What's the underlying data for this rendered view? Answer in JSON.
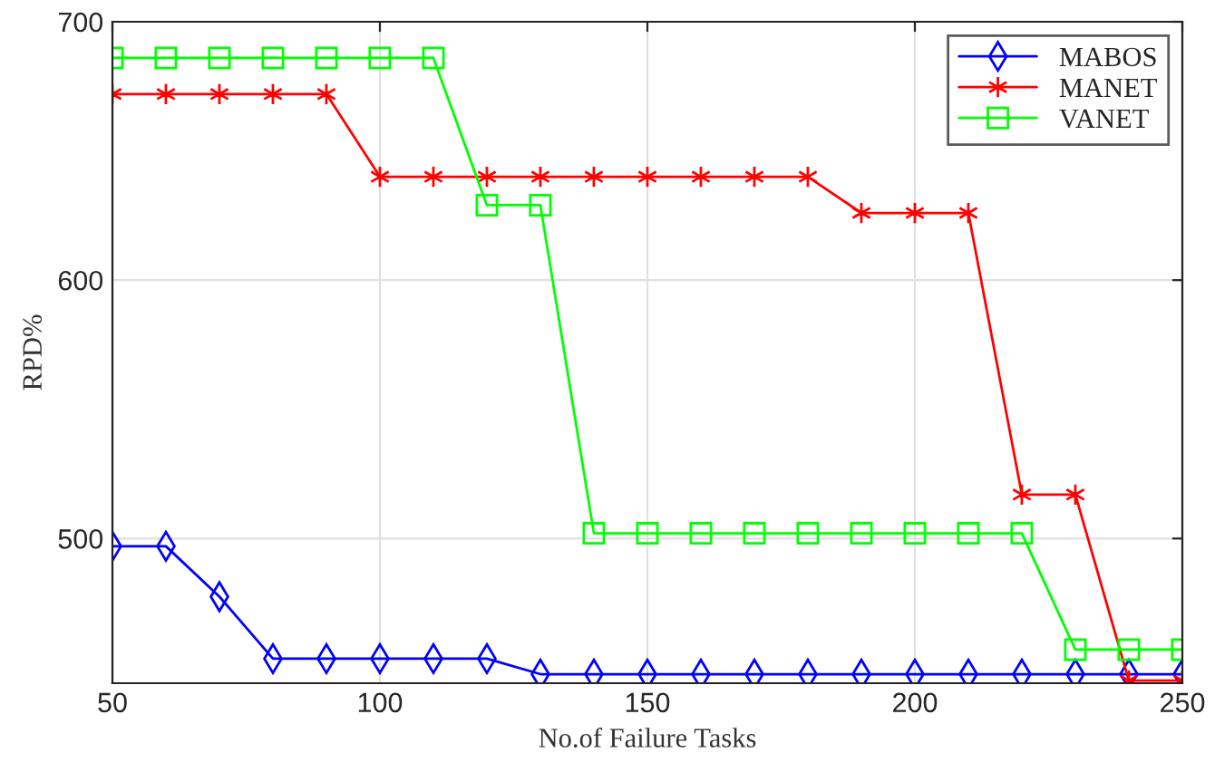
{
  "chart_data": {
    "type": "line",
    "xlabel": "No.of Failure Tasks",
    "ylabel": "RPD%",
    "x": [
      50,
      60,
      70,
      80,
      90,
      100,
      110,
      120,
      130,
      140,
      150,
      160,
      170,
      180,
      190,
      200,
      210,
      220,
      230,
      240,
      250
    ],
    "series": [
      {
        "name": "MABOS",
        "color": "#0000ff",
        "marker": "diamond",
        "values": [
          497,
          497,
          477.5,
          453.5,
          453.5,
          453.5,
          453.5,
          453.5,
          447.5,
          447.5,
          447.5,
          447.5,
          447.5,
          447.5,
          447.5,
          447.5,
          447.5,
          447.5,
          447.5,
          447.5,
          447.5
        ]
      },
      {
        "name": "MANET",
        "color": "#ff0000",
        "marker": "cross",
        "values": [
          672,
          672,
          672,
          672,
          672,
          640,
          640,
          640,
          640,
          640,
          640,
          640,
          640,
          640,
          626,
          626,
          626,
          517,
          517,
          445,
          445
        ]
      },
      {
        "name": "VANET",
        "color": "#00ff00",
        "marker": "square",
        "values": [
          686,
          686,
          686,
          686,
          686,
          686,
          686,
          629,
          629,
          502,
          502,
          502,
          502,
          502,
          502,
          502,
          502,
          502,
          457,
          457,
          457
        ]
      }
    ],
    "xlim": [
      50,
      250
    ],
    "xticks": [
      50,
      100,
      150,
      200,
      250
    ],
    "ylim": [
      444,
      700
    ],
    "yticks": [
      500,
      600,
      700
    ],
    "grid": true,
    "legend": "top right",
    "line_style": "solid"
  }
}
